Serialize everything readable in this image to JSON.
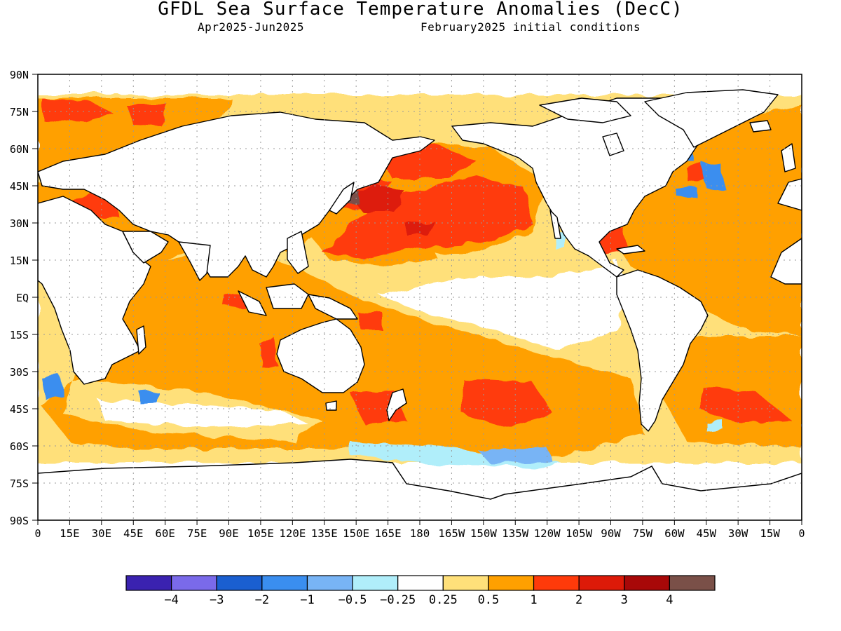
{
  "title": "GFDL Sea Surface Temperature Anomalies (DecC)",
  "subtitle_left": "Apr2025-Jun2025",
  "subtitle_right": "February2025 initial conditions",
  "lat_labels": [
    "90N",
    "75N",
    "60N",
    "45N",
    "30N",
    "15N",
    "EQ",
    "15S",
    "30S",
    "45S",
    "60S",
    "75S",
    "90S"
  ],
  "lon_labels": [
    "0",
    "15E",
    "30E",
    "45E",
    "60E",
    "75E",
    "90E",
    "105E",
    "120E",
    "135E",
    "150E",
    "165E",
    "180",
    "165W",
    "150W",
    "135W",
    "120W",
    "105W",
    "90W",
    "75W",
    "60W",
    "45W",
    "30W",
    "15W",
    "0"
  ],
  "legend": {
    "colors": [
      "#3a22b0",
      "#7a6aea",
      "#1a5fd0",
      "#3a8eef",
      "#78b4f5",
      "#b0eefa",
      "#ffffff",
      "#ffe07a",
      "#ffa000",
      "#ff3a0a",
      "#dd1a08",
      "#a80808",
      "#7a5048"
    ],
    "labels": [
      "-4",
      "-3",
      "-2",
      "-1",
      "-0.5",
      "-0.25",
      "0.25",
      "0.5",
      "1",
      "2",
      "3",
      "4"
    ]
  },
  "map": {
    "land_color": "#ffffff",
    "coast_color": "#000000"
  }
}
